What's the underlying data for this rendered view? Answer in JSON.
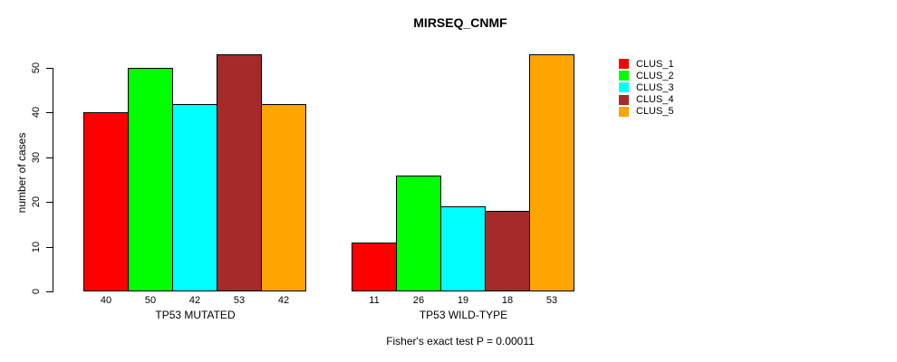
{
  "chart_data": {
    "type": "bar",
    "title": "MIRSEQ_CNMF",
    "ylabel": "number of cases",
    "xlabel": "",
    "ylim": [
      0,
      50
    ],
    "yticks": [
      0,
      10,
      20,
      30,
      40,
      50
    ],
    "grid": false,
    "legend_position": "right-outside-top",
    "value_labels_shown": true,
    "categories": [
      "TP53 MUTATED",
      "TP53 WILD-TYPE"
    ],
    "series": [
      {
        "name": "CLUS_1",
        "color": "#FF0000",
        "values": [
          40,
          11
        ]
      },
      {
        "name": "CLUS_2",
        "color": "#00FF00",
        "values": [
          50,
          26
        ]
      },
      {
        "name": "CLUS_3",
        "color": "#00FFFF",
        "values": [
          42,
          19
        ]
      },
      {
        "name": "CLUS_4",
        "color": "#A52A2A",
        "values": [
          53,
          18
        ]
      },
      {
        "name": "CLUS_5",
        "color": "#FFA500",
        "values": [
          42,
          53
        ]
      }
    ],
    "annotation": "Fisher's exact test P = 0.00011",
    "axis_color": "#000000",
    "bar_border_color": "#000000"
  }
}
